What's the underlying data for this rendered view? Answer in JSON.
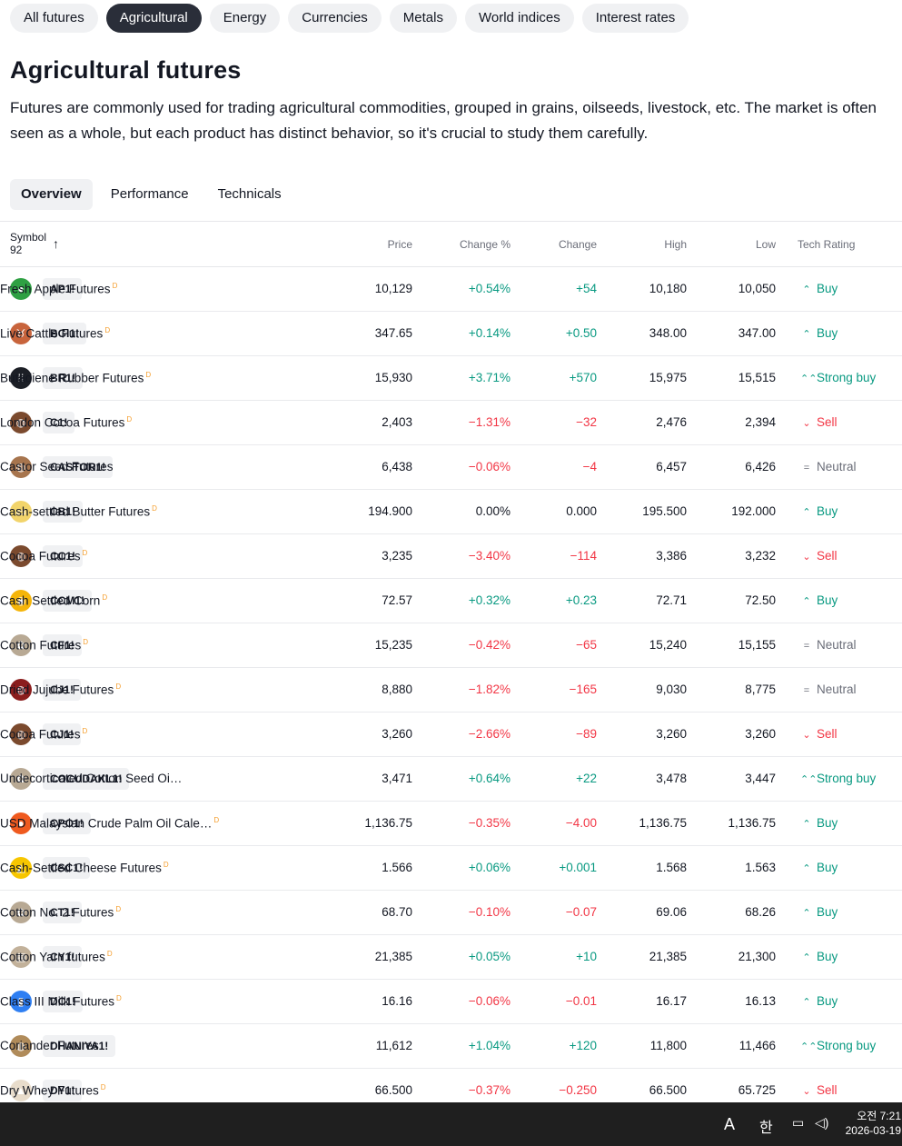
{
  "category_tabs": [
    {
      "label": "All futures",
      "active": false
    },
    {
      "label": "Agricultural",
      "active": true
    },
    {
      "label": "Energy",
      "active": false
    },
    {
      "label": "Currencies",
      "active": false
    },
    {
      "label": "Metals",
      "active": false
    },
    {
      "label": "World indices",
      "active": false
    },
    {
      "label": "Interest rates",
      "active": false
    }
  ],
  "title": "Agricultural futures",
  "description": "Futures are commonly used for trading agricultural commodities, grouped in grains, oilseeds, livestock, etc. The market is often seen as a whole, but each product has distinct behavior, so it's crucial to study them carefully.",
  "view_tabs": [
    {
      "label": "Overview",
      "active": true
    },
    {
      "label": "Performance",
      "active": false
    },
    {
      "label": "Technicals",
      "active": false
    }
  ],
  "table": {
    "headers": {
      "symbol": "Symbol",
      "count": "92",
      "price": "Price",
      "change_pct": "Change %",
      "change": "Change",
      "high": "High",
      "low": "Low",
      "rating": "Tech Rating"
    },
    "rows": [
      {
        "ticker": "AP1!",
        "name": "Fresh Apple Futures",
        "delayed": "D",
        "price": "10,129",
        "change_pct": "+0.54%",
        "change": "+54",
        "high": "10,180",
        "low": "10,050",
        "rating": "Buy",
        "dir": "pos",
        "icon": "apple-icon",
        "icon_color": "#2ea043",
        "glyph": "●"
      },
      {
        "ticker": "BGI1!",
        "name": "Live Cattle Futures",
        "delayed": "D",
        "price": "347.65",
        "change_pct": "+0.14%",
        "change": "+0.50",
        "high": "348.00",
        "low": "347.00",
        "rating": "Buy",
        "dir": "pos",
        "icon": "cattle-icon",
        "icon_color": "#c8643c",
        "glyph": "♉"
      },
      {
        "ticker": "BR1!",
        "name": "Butadiene Rubber Futures",
        "delayed": "D",
        "price": "15,930",
        "change_pct": "+3.71%",
        "change": "+570",
        "high": "15,975",
        "low": "15,515",
        "rating": "Strong buy",
        "dir": "pos",
        "icon": "rubber-icon",
        "icon_color": "#1c1f26",
        "glyph": "⁞⁞"
      },
      {
        "ticker": "C1!",
        "name": "London Cocoa Futures",
        "delayed": "D",
        "price": "2,403",
        "change_pct": "−1.31%",
        "change": "−32",
        "high": "2,476",
        "low": "2,394",
        "rating": "Sell",
        "dir": "neg",
        "icon": "cocoa-icon",
        "icon_color": "#7b4a2e",
        "glyph": "◍"
      },
      {
        "ticker": "CASTOR1!",
        "name": "Castor Seed Futures",
        "delayed": "",
        "price": "6,438",
        "change_pct": "−0.06%",
        "change": "−4",
        "high": "6,457",
        "low": "6,426",
        "rating": "Neutral",
        "dir": "neg",
        "icon": "seed-icon",
        "icon_color": "#a7754e",
        "glyph": "◍"
      },
      {
        "ticker": "CB1!",
        "name": "Cash-settled Butter Futures",
        "delayed": "D",
        "price": "194.900",
        "change_pct": "0.00%",
        "change": "0.000",
        "high": "195.500",
        "low": "192.000",
        "rating": "Buy",
        "dir": "neu",
        "icon": "butter-icon",
        "icon_color": "#f2d46b",
        "glyph": "▭"
      },
      {
        "ticker": "CC1!",
        "name": "Cocoa Futures",
        "delayed": "D",
        "price": "3,235",
        "change_pct": "−3.40%",
        "change": "−114",
        "high": "3,386",
        "low": "3,232",
        "rating": "Sell",
        "dir": "neg",
        "icon": "cocoa-icon",
        "icon_color": "#7b4a2e",
        "glyph": "◍"
      },
      {
        "ticker": "CCM1!",
        "name": "Cash Settled Corn",
        "delayed": "D",
        "price": "72.57",
        "change_pct": "+0.32%",
        "change": "+0.23",
        "high": "72.71",
        "low": "72.50",
        "rating": "Buy",
        "dir": "pos",
        "icon": "corn-icon",
        "icon_color": "#f5b50a",
        "glyph": "◉"
      },
      {
        "ticker": "CF1!",
        "name": "Cotton Futures",
        "delayed": "D",
        "price": "15,235",
        "change_pct": "−0.42%",
        "change": "−65",
        "high": "15,240",
        "low": "15,155",
        "rating": "Neutral",
        "dir": "neg",
        "icon": "cotton-icon",
        "icon_color": "#b8a994",
        "glyph": "✿"
      },
      {
        "ticker": "CJ1!",
        "name": "Dried Jujube Futures",
        "delayed": "D",
        "price": "8,880",
        "change_pct": "−1.82%",
        "change": "−165",
        "high": "9,030",
        "low": "8,775",
        "rating": "Neutral",
        "dir": "neg",
        "icon": "jujube-icon",
        "icon_color": "#8b1d1d",
        "glyph": "◍"
      },
      {
        "ticker": "CJ1!",
        "name": "Cocoa Futures",
        "delayed": "D",
        "price": "3,260",
        "change_pct": "−2.66%",
        "change": "−89",
        "high": "3,260",
        "low": "3,260",
        "rating": "Sell",
        "dir": "neg",
        "icon": "cocoa-icon",
        "icon_color": "#7b4a2e",
        "glyph": "◍"
      },
      {
        "ticker": "COCUDAKL1!",
        "name": "Undecorticated Cotton Seed Oi…",
        "delayed": "",
        "price": "3,471",
        "change_pct": "+0.64%",
        "change": "+22",
        "high": "3,478",
        "low": "3,447",
        "rating": "Strong buy",
        "dir": "pos",
        "icon": "cotton-icon",
        "icon_color": "#b8a994",
        "glyph": "✿"
      },
      {
        "ticker": "CPO1!",
        "name": "USD Malaysian Crude Palm Oil Cale…",
        "delayed": "D",
        "price": "1,136.75",
        "change_pct": "−0.35%",
        "change": "−4.00",
        "high": "1,136.75",
        "low": "1,136.75",
        "rating": "Buy",
        "dir": "neg",
        "icon": "palm-oil-icon",
        "icon_color": "#ef5a1f",
        "glyph": "●"
      },
      {
        "ticker": "CSC1!",
        "name": "Cash-Settled Cheese Futures",
        "delayed": "D",
        "price": "1.566",
        "change_pct": "+0.06%",
        "change": "+0.001",
        "high": "1.568",
        "low": "1.563",
        "rating": "Buy",
        "dir": "pos",
        "icon": "cheese-icon",
        "icon_color": "#f7c600",
        "glyph": "◭"
      },
      {
        "ticker": "CT1!",
        "name": "Cotton No. 2 Futures",
        "delayed": "D",
        "price": "68.70",
        "change_pct": "−0.10%",
        "change": "−0.07",
        "high": "69.06",
        "low": "68.26",
        "rating": "Buy",
        "dir": "neg",
        "icon": "cotton-icon",
        "icon_color": "#b8a994",
        "glyph": "✿"
      },
      {
        "ticker": "CY1!",
        "name": "Cotton Yarn futures",
        "delayed": "D",
        "price": "21,385",
        "change_pct": "+0.05%",
        "change": "+10",
        "high": "21,385",
        "low": "21,300",
        "rating": "Buy",
        "dir": "pos",
        "icon": "yarn-icon",
        "icon_color": "#c2b19a",
        "glyph": "▤"
      },
      {
        "ticker": "DC1!",
        "name": "Class III Milk Futures",
        "delayed": "D",
        "price": "16.16",
        "change_pct": "−0.06%",
        "change": "−0.01",
        "high": "16.17",
        "low": "16.13",
        "rating": "Buy",
        "dir": "neg",
        "icon": "milk-icon",
        "icon_color": "#2f7ff2",
        "glyph": "▮"
      },
      {
        "ticker": "DHANIYA1!",
        "name": "Coriander Futures",
        "delayed": "",
        "price": "11,612",
        "change_pct": "+1.04%",
        "change": "+120",
        "high": "11,800",
        "low": "11,466",
        "rating": "Strong buy",
        "dir": "pos",
        "icon": "coriander-icon",
        "icon_color": "#b08b5a",
        "glyph": "◍"
      },
      {
        "ticker": "DY1!",
        "name": "Dry Whey Futures",
        "delayed": "D",
        "price": "66.500",
        "change_pct": "−0.37%",
        "change": "−0.250",
        "high": "66.500",
        "low": "65.725",
        "rating": "Sell",
        "dir": "neg",
        "icon": "whey-icon",
        "icon_color": "#e8dccb",
        "glyph": "▲"
      }
    ]
  },
  "taskbar": {
    "ime": "A",
    "lang": "한",
    "time": "오전 7:21",
    "date": "2026-03-19"
  },
  "colors": {
    "positive": "#089981",
    "negative": "#f23645",
    "neutral": "#6a6d78"
  }
}
